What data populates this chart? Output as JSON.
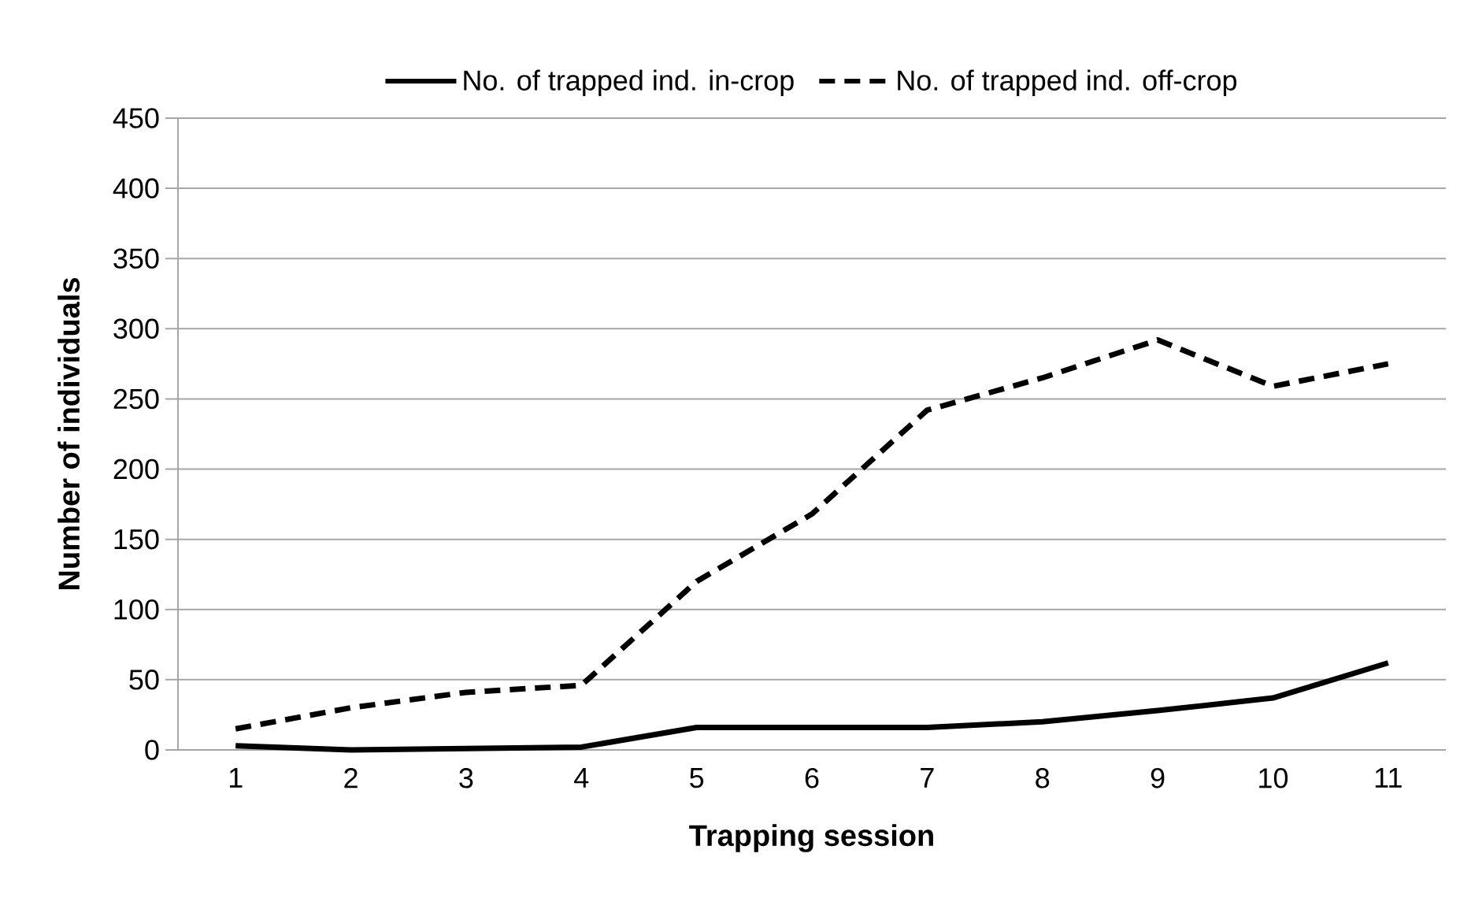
{
  "chart_data": {
    "type": "line",
    "xlabel": "Trapping session",
    "ylabel": "Number of individuals",
    "categories": [
      "1",
      "2",
      "3",
      "4",
      "5",
      "6",
      "7",
      "8",
      "9",
      "10",
      "11"
    ],
    "series": [
      {
        "name": "No. of trapped ind. in-crop",
        "color": "#000000",
        "line_style": "solid",
        "values": [
          3,
          0,
          1,
          2,
          16,
          16,
          16,
          20,
          28,
          37,
          62
        ]
      },
      {
        "name": "No. of trapped ind. off-crop",
        "color": "#000000",
        "line_style": "dashed",
        "values": [
          15,
          30,
          41,
          46,
          120,
          168,
          242,
          265,
          292,
          259,
          275
        ]
      }
    ],
    "ylim": [
      0,
      450
    ],
    "yticks": [
      0,
      50,
      100,
      150,
      200,
      250,
      300,
      350,
      400,
      450
    ],
    "grid": "y",
    "legend": "top",
    "marker": "none"
  }
}
